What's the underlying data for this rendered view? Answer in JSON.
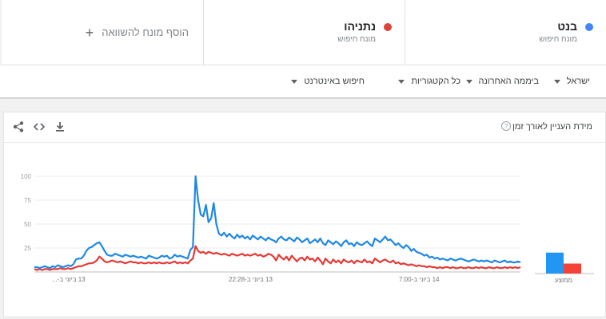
{
  "terms": [
    {
      "name": "בנט",
      "sub": "מונח חיפוש",
      "color": "#4285f4"
    },
    {
      "name": "נתניהו",
      "sub": "מונח חיפוש",
      "color": "#db4437"
    }
  ],
  "add_term": {
    "label": "הוסף מונח להשוואה",
    "icon": "plus-icon"
  },
  "filters": [
    {
      "label": "ישראל"
    },
    {
      "label": "ביממה האחרונה"
    },
    {
      "label": "כל הקטגוריות"
    },
    {
      "label": "חיפוש באינטרנט"
    }
  ],
  "card": {
    "title": "מידת העניין לאורך זמן",
    "help_icon": "help-icon",
    "actions": [
      "download-icon",
      "embed-icon",
      "share-icon"
    ]
  },
  "chart_data": {
    "type": "line",
    "ylim": [
      0,
      100
    ],
    "yticks": [
      25,
      50,
      75,
      100
    ],
    "grid": true,
    "x_labels": [
      "13 ביוני ב-...",
      "13 ביוני ב-22:28",
      "14 ביוני ב-7:00"
    ],
    "series": [
      {
        "name": "בנט",
        "color": "#1e88e5",
        "values": [
          5,
          5,
          4,
          5,
          6,
          5,
          4,
          6,
          5,
          7,
          6,
          5,
          6,
          7,
          6,
          8,
          13,
          14,
          14,
          17,
          22,
          25,
          26,
          28,
          30,
          31,
          27,
          22,
          18,
          17,
          17,
          19,
          18,
          17,
          16,
          18,
          17,
          16,
          17,
          16,
          15,
          16,
          15,
          14,
          17,
          16,
          15,
          14,
          15,
          17,
          16,
          17,
          14,
          15,
          18,
          16,
          17,
          16,
          15,
          14,
          23,
          26,
          100,
          75,
          60,
          58,
          70,
          52,
          56,
          72,
          50,
          40,
          38,
          41,
          37,
          40,
          37,
          35,
          39,
          36,
          38,
          35,
          37,
          34,
          38,
          36,
          34,
          37,
          35,
          33,
          36,
          34,
          33,
          31,
          35,
          37,
          34,
          33,
          36,
          34,
          32,
          36,
          34,
          31,
          33,
          35,
          30,
          32,
          34,
          31,
          35,
          30,
          28,
          33,
          31,
          29,
          32,
          30,
          27,
          31,
          33,
          29,
          30,
          27,
          31,
          29,
          28,
          30,
          32,
          29,
          27,
          35,
          33,
          31,
          34,
          37,
          33,
          34,
          31,
          28,
          30,
          27,
          25,
          28,
          26,
          22,
          24,
          21,
          20,
          19,
          17,
          18,
          15,
          16,
          14,
          15,
          13,
          14,
          13,
          12,
          14,
          13,
          12,
          13,
          14,
          13,
          12,
          11,
          12,
          13,
          12,
          11,
          12,
          11,
          12,
          11,
          10,
          12,
          11,
          10,
          11,
          12,
          10,
          11,
          10,
          10,
          11,
          10
        ]
      },
      {
        "name": "נתניהו",
        "color": "#e53935",
        "values": [
          3,
          2,
          3,
          2,
          3,
          3,
          2,
          3,
          3,
          3,
          4,
          3,
          3,
          4,
          3,
          4,
          5,
          6,
          6,
          7,
          8,
          9,
          9,
          10,
          12,
          16,
          14,
          11,
          10,
          11,
          12,
          11,
          10,
          11,
          10,
          9,
          10,
          11,
          10,
          10,
          9,
          10,
          9,
          9,
          10,
          9,
          10,
          9,
          10,
          9,
          9,
          10,
          9,
          10,
          11,
          9,
          10,
          9,
          10,
          9,
          12,
          14,
          27,
          22,
          20,
          21,
          19,
          21,
          20,
          19,
          20,
          19,
          18,
          19,
          18,
          17,
          19,
          18,
          17,
          18,
          19,
          17,
          18,
          17,
          18,
          19,
          17,
          18,
          16,
          17,
          19,
          18,
          16,
          12,
          18,
          15,
          13,
          16,
          12,
          17,
          14,
          11,
          14,
          15,
          12,
          16,
          13,
          14,
          11,
          15,
          12,
          8,
          14,
          11,
          9,
          13,
          10,
          12,
          9,
          13,
          11,
          10,
          12,
          9,
          12,
          11,
          10,
          13,
          10,
          11,
          9,
          14,
          12,
          10,
          12,
          13,
          11,
          10,
          12,
          9,
          10,
          8,
          9,
          8,
          7,
          8,
          7,
          6,
          7,
          6,
          6,
          5,
          6,
          5,
          5,
          4,
          5,
          4,
          5,
          5,
          4,
          5,
          4,
          4,
          5,
          4,
          4,
          5,
          4,
          4,
          5,
          4,
          5,
          4,
          4,
          5,
          4,
          4,
          5,
          4,
          4,
          5,
          4,
          5,
          4,
          5,
          4,
          5
        ]
      }
    ],
    "legend_label": "ממוצע",
    "averages": [
      {
        "value": 21,
        "color": "#2196f3"
      },
      {
        "value": 10,
        "color": "#f44336"
      }
    ]
  }
}
